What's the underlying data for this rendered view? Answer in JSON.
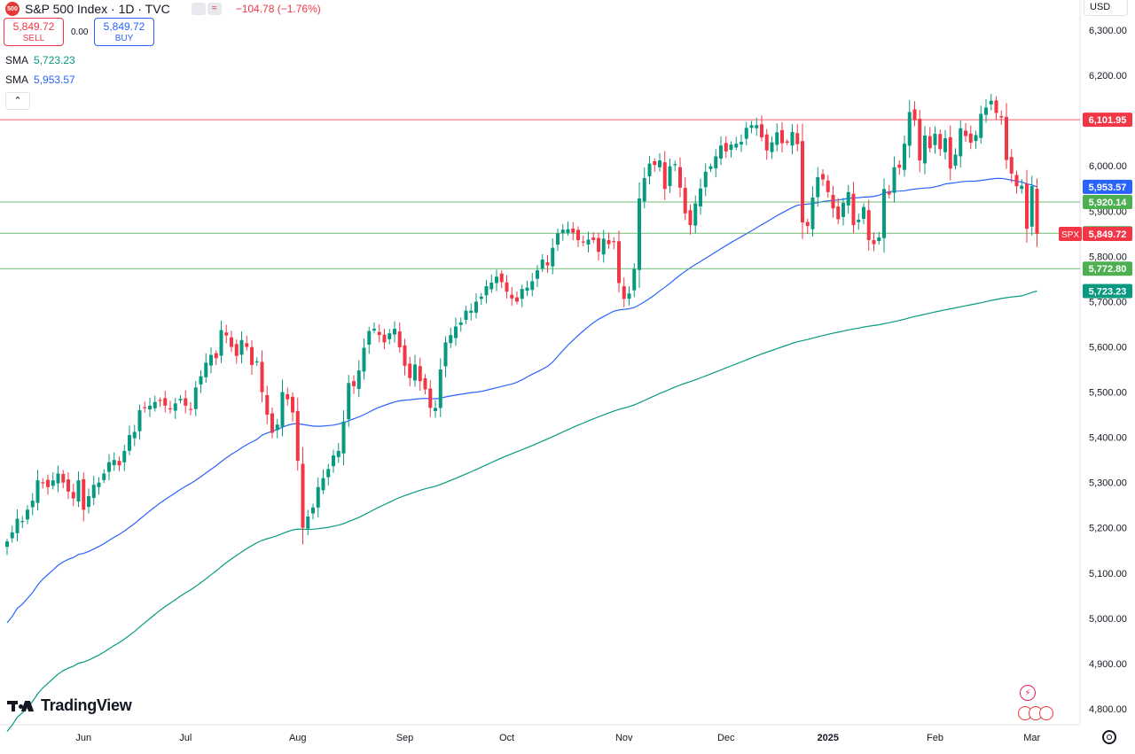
{
  "header": {
    "logo_text": "500",
    "title": "S&P 500 Index · 1D · TVC",
    "change": "−104.78 (−1.76%)",
    "approx_icon": "≈"
  },
  "trade": {
    "sell_price": "5,849.72",
    "sell_label": "SELL",
    "spread": "0.00",
    "buy_price": "5,849.72",
    "buy_label": "BUY"
  },
  "indicators": [
    {
      "name": "SMA",
      "value": "5,723.23",
      "color": "#089981"
    },
    {
      "name": "SMA",
      "value": "5,953.57",
      "color": "#2962ff"
    }
  ],
  "collapse_icon": "chevron-up",
  "currency": "USD",
  "branding": "TradingView",
  "colors": {
    "up": "#089981",
    "down": "#f23645",
    "sma_fast": "#2962ff",
    "sma_slow": "#089981",
    "hline_red": "#f23645",
    "hline_green": "#4caf50"
  },
  "chart_data": {
    "type": "candlestick",
    "title": "S&P 500 Index · 1D · TVC",
    "ylim": [
      4760,
      6340
    ],
    "y_ticks": [
      4800,
      4900,
      5000,
      5100,
      5200,
      5300,
      5400,
      5500,
      5600,
      5700,
      5800,
      5900,
      6000,
      6100,
      6200,
      6300
    ],
    "y_tick_labels": [
      "4,800.00",
      "4,900.00",
      "5,000.00",
      "5,100.00",
      "5,200.00",
      "5,300.00",
      "5,400.00",
      "5,500.00",
      "5,600.00",
      "5,700.00",
      "5,800.00",
      "5,900.00",
      "6,000.00",
      "6,100.00",
      "6,200.00",
      "6,300.00"
    ],
    "x_month_labels": [
      {
        "label": "Jun",
        "index": 15
      },
      {
        "label": "Jul",
        "index": 35
      },
      {
        "label": "Aug",
        "index": 57
      },
      {
        "label": "Sep",
        "index": 78
      },
      {
        "label": "Oct",
        "index": 98
      },
      {
        "label": "Nov",
        "index": 121
      },
      {
        "label": "Dec",
        "index": 141
      },
      {
        "label": "2025",
        "index": 161
      },
      {
        "label": "Feb",
        "index": 182
      },
      {
        "label": "Mar",
        "index": 201
      }
    ],
    "closes": [
      5170,
      5190,
      5220,
      5215,
      5240,
      5260,
      5305,
      5300,
      5290,
      5305,
      5320,
      5300,
      5280,
      5265,
      5305,
      5240,
      5270,
      5295,
      5300,
      5320,
      5345,
      5350,
      5338,
      5370,
      5405,
      5412,
      5460,
      5465,
      5470,
      5478,
      5482,
      5470,
      5462,
      5475,
      5485,
      5470,
      5462,
      5510,
      5535,
      5565,
      5582,
      5575,
      5637,
      5625,
      5600,
      5580,
      5615,
      5600,
      5560,
      5568,
      5500,
      5450,
      5410,
      5428,
      5500,
      5484,
      5455,
      5348,
      5200,
      5225,
      5245,
      5290,
      5310,
      5330,
      5360,
      5370,
      5435,
      5520,
      5513,
      5548,
      5598,
      5635,
      5640,
      5626,
      5610,
      5630,
      5640,
      5599,
      5558,
      5531,
      5561,
      5524,
      5506,
      5465,
      5465,
      5550,
      5610,
      5626,
      5645,
      5654,
      5680,
      5680,
      5700,
      5711,
      5734,
      5742,
      5755,
      5743,
      5722,
      5707,
      5700,
      5728,
      5731,
      5745,
      5769,
      5793,
      5780,
      5819,
      5851,
      5859,
      5860,
      5852,
      5836,
      5832,
      5837,
      5836,
      5810,
      5839,
      5827,
      5832,
      5741,
      5706,
      5718,
      5772,
      5928,
      5973,
      6005,
      6002,
      6012,
      5949,
      5999,
      6004,
      5952,
      5895,
      5869,
      5917,
      5950,
      5987,
      5999,
      6021,
      6045,
      6032,
      6047,
      6049,
      6053,
      6084,
      6090,
      6090,
      6063,
      6034,
      6052,
      6074,
      6050,
      6051,
      6075,
      6048,
      5875,
      5867,
      5930,
      5975,
      5970,
      5942,
      5906,
      5882,
      5918,
      5942,
      5869,
      5881,
      5909,
      5836,
      5827,
      5842,
      5949,
      5937,
      5997,
      5996,
      6049,
      6119,
      6101,
      6012,
      6067,
      6039,
      6071,
      6037,
      6061,
      5994,
      6025,
      6083,
      6066,
      6051,
      6068,
      6115,
      6129,
      6144,
      6117,
      6107,
      6013,
      5983,
      5955,
      5956,
      5861,
      5955,
      5849.72
    ],
    "series": [
      {
        "name": "SMA",
        "last": 5723.23
      },
      {
        "name": "SMA",
        "last": 5953.57
      }
    ],
    "price_lines": [
      {
        "value": 6101.95,
        "label": "6,101.95",
        "color": "#f23645"
      },
      {
        "value": 5920.14,
        "label": "5,920.14",
        "color": "#4caf50"
      },
      {
        "value": 5851.17,
        "label": "5,851.17",
        "color": "#4caf50"
      },
      {
        "value": 5772.8,
        "label": "5,772.80",
        "color": "#4caf50"
      }
    ],
    "axis_badges": [
      {
        "value": 5953.57,
        "label": "5,953.57",
        "color": "#2962ff"
      },
      {
        "value": 5849.72,
        "label": "5,849.72",
        "color": "#f23645",
        "tag": "SPX"
      },
      {
        "value": 5723.23,
        "label": "5,723.23",
        "color": "#089981"
      }
    ],
    "grid": false,
    "legend": "top-left"
  }
}
